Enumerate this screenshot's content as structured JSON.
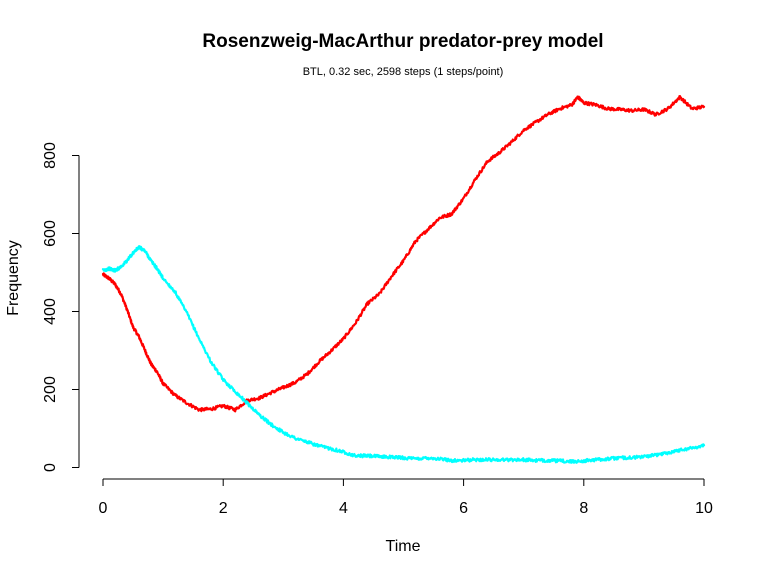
{
  "chart_data": {
    "type": "line",
    "title": "Rosenzweig-MacArthur predator-prey model",
    "subtitle": "BTL, 0.32 sec, 2598 steps (1 steps/point)",
    "xlabel": "Time",
    "ylabel": "Frequency",
    "xlim": [
      0,
      10
    ],
    "ylim": [
      0,
      950
    ],
    "xticks": [
      0,
      2,
      4,
      6,
      8,
      10
    ],
    "yticks": [
      0,
      200,
      400,
      600,
      800
    ],
    "grid": false,
    "legend": "none",
    "series": [
      {
        "color": "#ff0000",
        "x": [
          0,
          0.1,
          0.2,
          0.3,
          0.4,
          0.5,
          0.6,
          0.7,
          0.8,
          0.9,
          1.0,
          1.2,
          1.4,
          1.6,
          1.8,
          2.0,
          2.2,
          2.4,
          2.6,
          2.8,
          3.0,
          3.2,
          3.4,
          3.6,
          3.8,
          4.0,
          4.2,
          4.4,
          4.6,
          4.8,
          5.0,
          5.2,
          5.4,
          5.6,
          5.8,
          6.0,
          6.2,
          6.4,
          6.6,
          6.8,
          7.0,
          7.2,
          7.4,
          7.6,
          7.8,
          7.9,
          8.0,
          8.2,
          8.4,
          8.6,
          8.8,
          9.0,
          9.2,
          9.4,
          9.6,
          9.8,
          10.0
        ],
        "y": [
          495,
          485,
          470,
          445,
          405,
          360,
          335,
          300,
          265,
          245,
          215,
          185,
          165,
          148,
          150,
          158,
          148,
          172,
          178,
          192,
          205,
          218,
          240,
          272,
          300,
          330,
          370,
          420,
          445,
          490,
          530,
          580,
          610,
          640,
          650,
          690,
          740,
          785,
          808,
          835,
          865,
          885,
          905,
          920,
          930,
          950,
          935,
          930,
          920,
          918,
          915,
          918,
          905,
          920,
          950,
          920,
          925
        ]
      },
      {
        "color": "#00ffff",
        "x": [
          0,
          0.1,
          0.2,
          0.3,
          0.4,
          0.5,
          0.6,
          0.7,
          0.8,
          0.9,
          1.0,
          1.2,
          1.4,
          1.6,
          1.8,
          2.0,
          2.2,
          2.4,
          2.6,
          2.8,
          3.0,
          3.2,
          3.4,
          3.6,
          3.8,
          4.0,
          4.2,
          4.4,
          4.6,
          4.8,
          5.0,
          5.2,
          5.4,
          5.6,
          5.8,
          6.0,
          6.2,
          6.4,
          6.6,
          6.8,
          7.0,
          7.2,
          7.4,
          7.6,
          7.8,
          8.0,
          8.2,
          8.4,
          8.6,
          8.8,
          9.0,
          9.2,
          9.4,
          9.6,
          9.8,
          10.0
        ],
        "y": [
          505,
          510,
          505,
          515,
          530,
          550,
          565,
          555,
          530,
          510,
          485,
          450,
          395,
          330,
          270,
          225,
          195,
          165,
          135,
          110,
          90,
          75,
          65,
          55,
          48,
          40,
          30,
          30,
          28,
          27,
          25,
          22,
          25,
          22,
          18,
          18,
          20,
          20,
          20,
          20,
          20,
          18,
          18,
          17,
          15,
          17,
          20,
          22,
          25,
          25,
          28,
          32,
          38,
          45,
          50,
          57
        ]
      }
    ]
  }
}
